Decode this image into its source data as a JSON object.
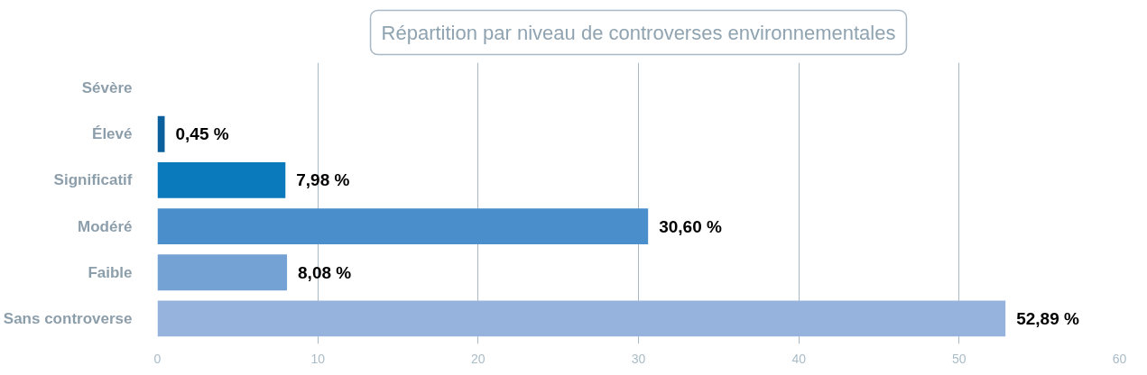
{
  "chart_data": {
    "type": "bar",
    "orientation": "horizontal",
    "title": "Répartition par niveau de controverses environnementales",
    "categories": [
      "Sévère",
      "Élevé",
      "Significatif",
      "Modéré",
      "Faible",
      "Sans controverse"
    ],
    "values": [
      null,
      0.45,
      7.98,
      30.6,
      8.08,
      52.89
    ],
    "value_labels": [
      null,
      "0,45 %",
      "7,98 %",
      "30,60 %",
      "8,08 %",
      "52,89 %"
    ],
    "colors": [
      "#0b4f86",
      "#0b5f9c",
      "#0a7abd",
      "#4a8fcb",
      "#74a2d4",
      "#96b3de"
    ],
    "xlim": [
      0,
      60
    ],
    "xticks": [
      0,
      10,
      20,
      30,
      40,
      50,
      60
    ],
    "grid": "x"
  }
}
